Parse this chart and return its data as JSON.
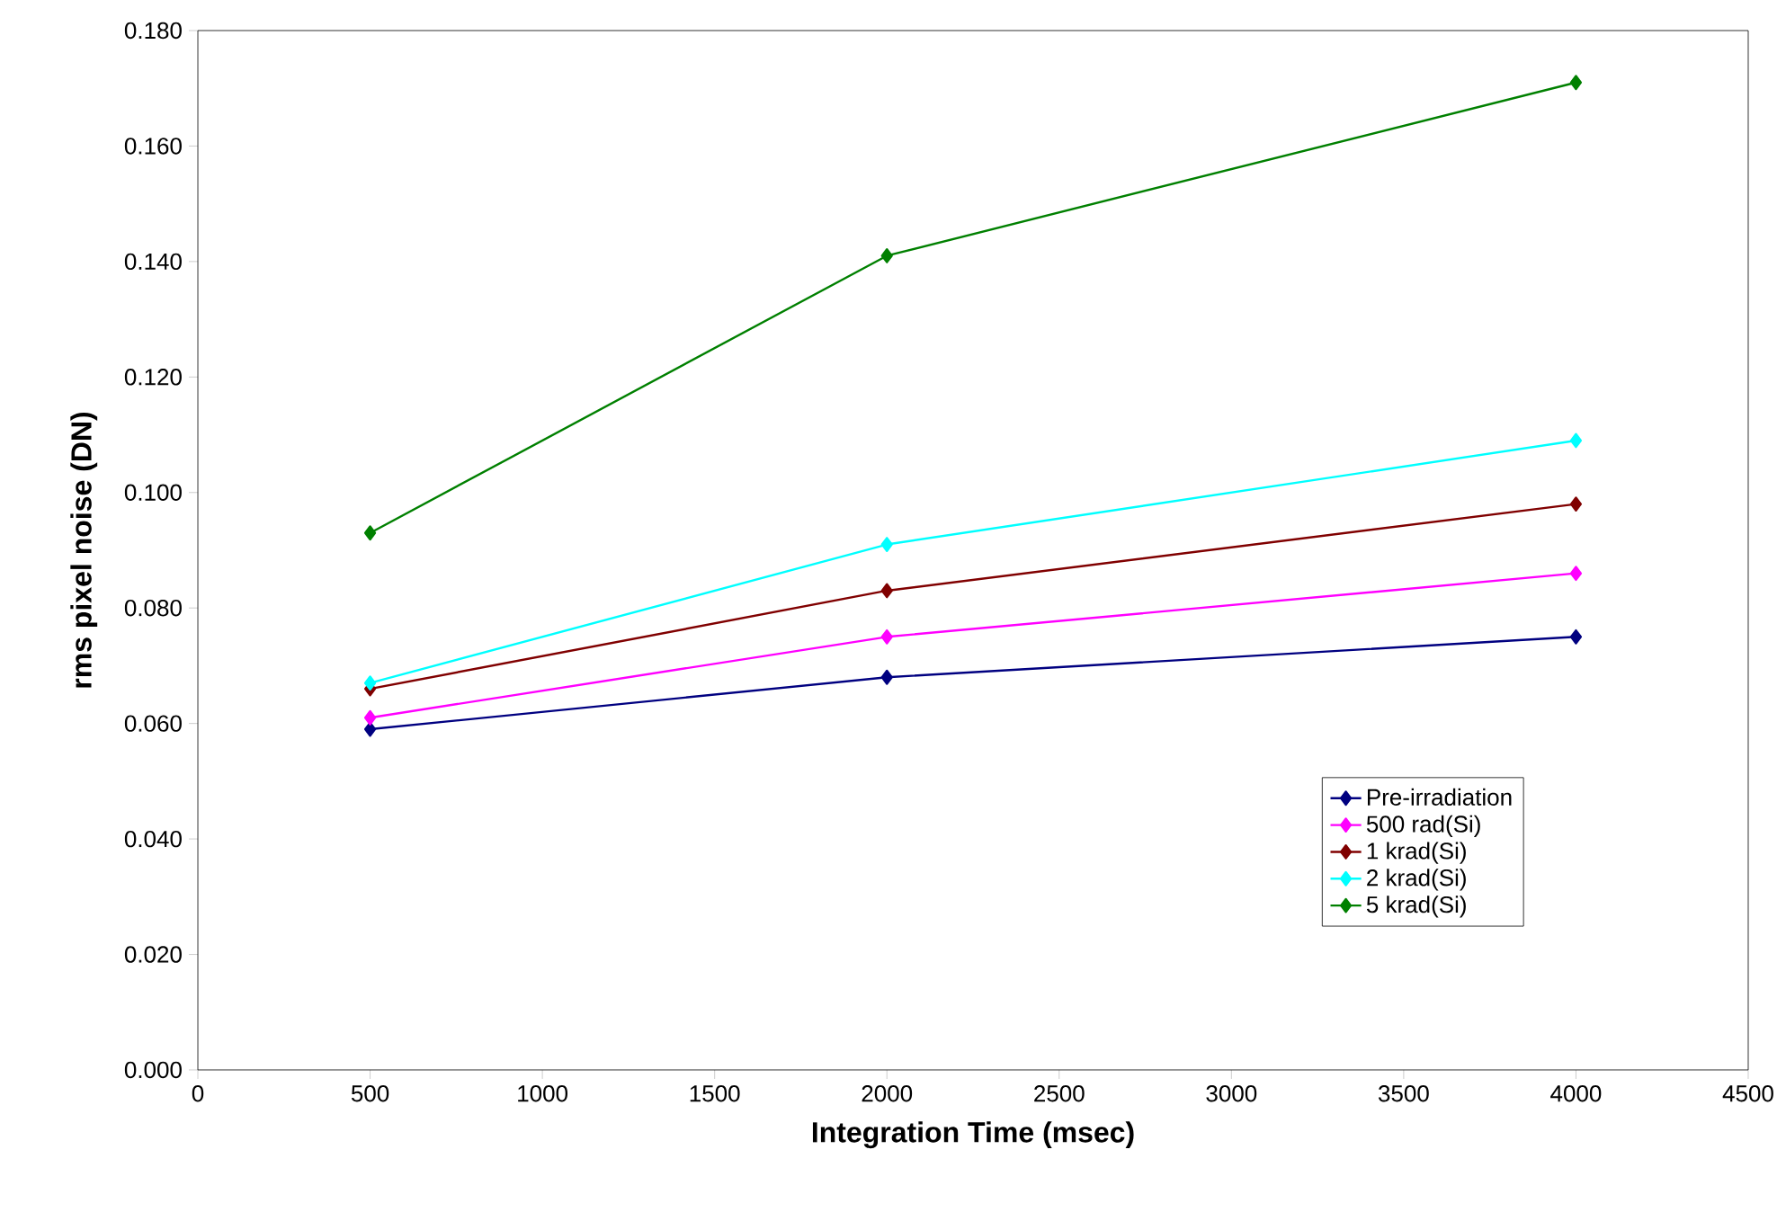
{
  "chart_data": {
    "type": "line",
    "xlabel": "Integration Time (msec)",
    "ylabel": "rms pixel noise (DN)",
    "x": [
      500,
      2000,
      4000
    ],
    "series": [
      {
        "name": "Pre-irradiation",
        "color": "#000080",
        "values": [
          0.059,
          0.068,
          0.075
        ]
      },
      {
        "name": "500 rad(Si)",
        "color": "#ff00ff",
        "values": [
          0.061,
          0.075,
          0.086
        ]
      },
      {
        "name": "1 krad(Si)",
        "color": "#800000",
        "values": [
          0.066,
          0.083,
          0.098
        ]
      },
      {
        "name": "2 krad(Si)",
        "color": "#00ffff",
        "values": [
          0.067,
          0.091,
          0.109
        ]
      },
      {
        "name": "5 krad(Si)",
        "color": "#008000",
        "values": [
          0.093,
          0.141,
          0.171
        ]
      }
    ],
    "xlim": [
      0,
      4500
    ],
    "ylim": [
      0,
      0.18
    ],
    "xticks": [
      0,
      500,
      1000,
      1500,
      2000,
      2500,
      3000,
      3500,
      4000,
      4500
    ],
    "yticks": [
      {
        "value": 0,
        "label": "0.000"
      },
      {
        "value": 0.02,
        "label": "0.020"
      },
      {
        "value": 0.04,
        "label": "0.040"
      },
      {
        "value": 0.06,
        "label": "0.060"
      },
      {
        "value": 0.08,
        "label": "0.080"
      },
      {
        "value": 0.1,
        "label": "0.100"
      },
      {
        "value": 0.12,
        "label": "0.120"
      },
      {
        "value": 0.14,
        "label": "0.140"
      },
      {
        "value": 0.16,
        "label": "0.160"
      },
      {
        "value": 0.18,
        "label": "0.180"
      }
    ],
    "grid": false,
    "legend": "bottom right",
    "marker": "diamond",
    "line_style": "solid"
  }
}
